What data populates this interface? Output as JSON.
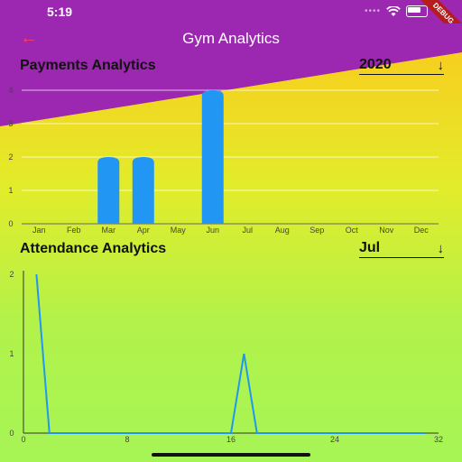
{
  "status_bar": {
    "time": "5:19",
    "debug_label": "DEBUG"
  },
  "app_bar": {
    "title": "Gym Analytics"
  },
  "payments": {
    "title": "Payments Analytics",
    "selector": {
      "value": "2020",
      "arrow": "↓"
    }
  },
  "attendance": {
    "title": "Attendance Analytics",
    "selector": {
      "value": "Jul",
      "arrow": "↓"
    }
  },
  "colors": {
    "bar": "#2196f3",
    "line": "#2196f3",
    "appbar": "#9c27b0",
    "back_arrow": "#ff3b6a"
  },
  "chart_data": [
    {
      "type": "bar",
      "categories": [
        "Jan",
        "Feb",
        "Mar",
        "Apr",
        "May",
        "Jun",
        "Jul",
        "Aug",
        "Sep",
        "Oct",
        "Nov",
        "Dec"
      ],
      "values": [
        0,
        0,
        2,
        2,
        0,
        4,
        0,
        0,
        0,
        0,
        0,
        0
      ],
      "ylim": [
        0,
        4
      ],
      "yticks": [
        0,
        1,
        2,
        3,
        4
      ],
      "grid": true
    },
    {
      "type": "line",
      "x": [
        1,
        2,
        3,
        4,
        5,
        6,
        7,
        8,
        9,
        10,
        11,
        12,
        13,
        14,
        15,
        16,
        17,
        18,
        19,
        20,
        21,
        22,
        23,
        24,
        25,
        26,
        27,
        28,
        29,
        30,
        31
      ],
      "y": [
        2,
        0,
        0,
        0,
        0,
        0,
        0,
        0,
        0,
        0,
        0,
        0,
        0,
        0,
        0,
        0,
        1,
        0,
        0,
        0,
        0,
        0,
        0,
        0,
        0,
        0,
        0,
        0,
        0,
        0,
        0
      ],
      "xlim": [
        0,
        32
      ],
      "ylim": [
        0,
        2
      ],
      "xticks": [
        0,
        8,
        16,
        24,
        32
      ],
      "yticks": [
        0,
        1,
        2
      ],
      "grid": false
    }
  ]
}
